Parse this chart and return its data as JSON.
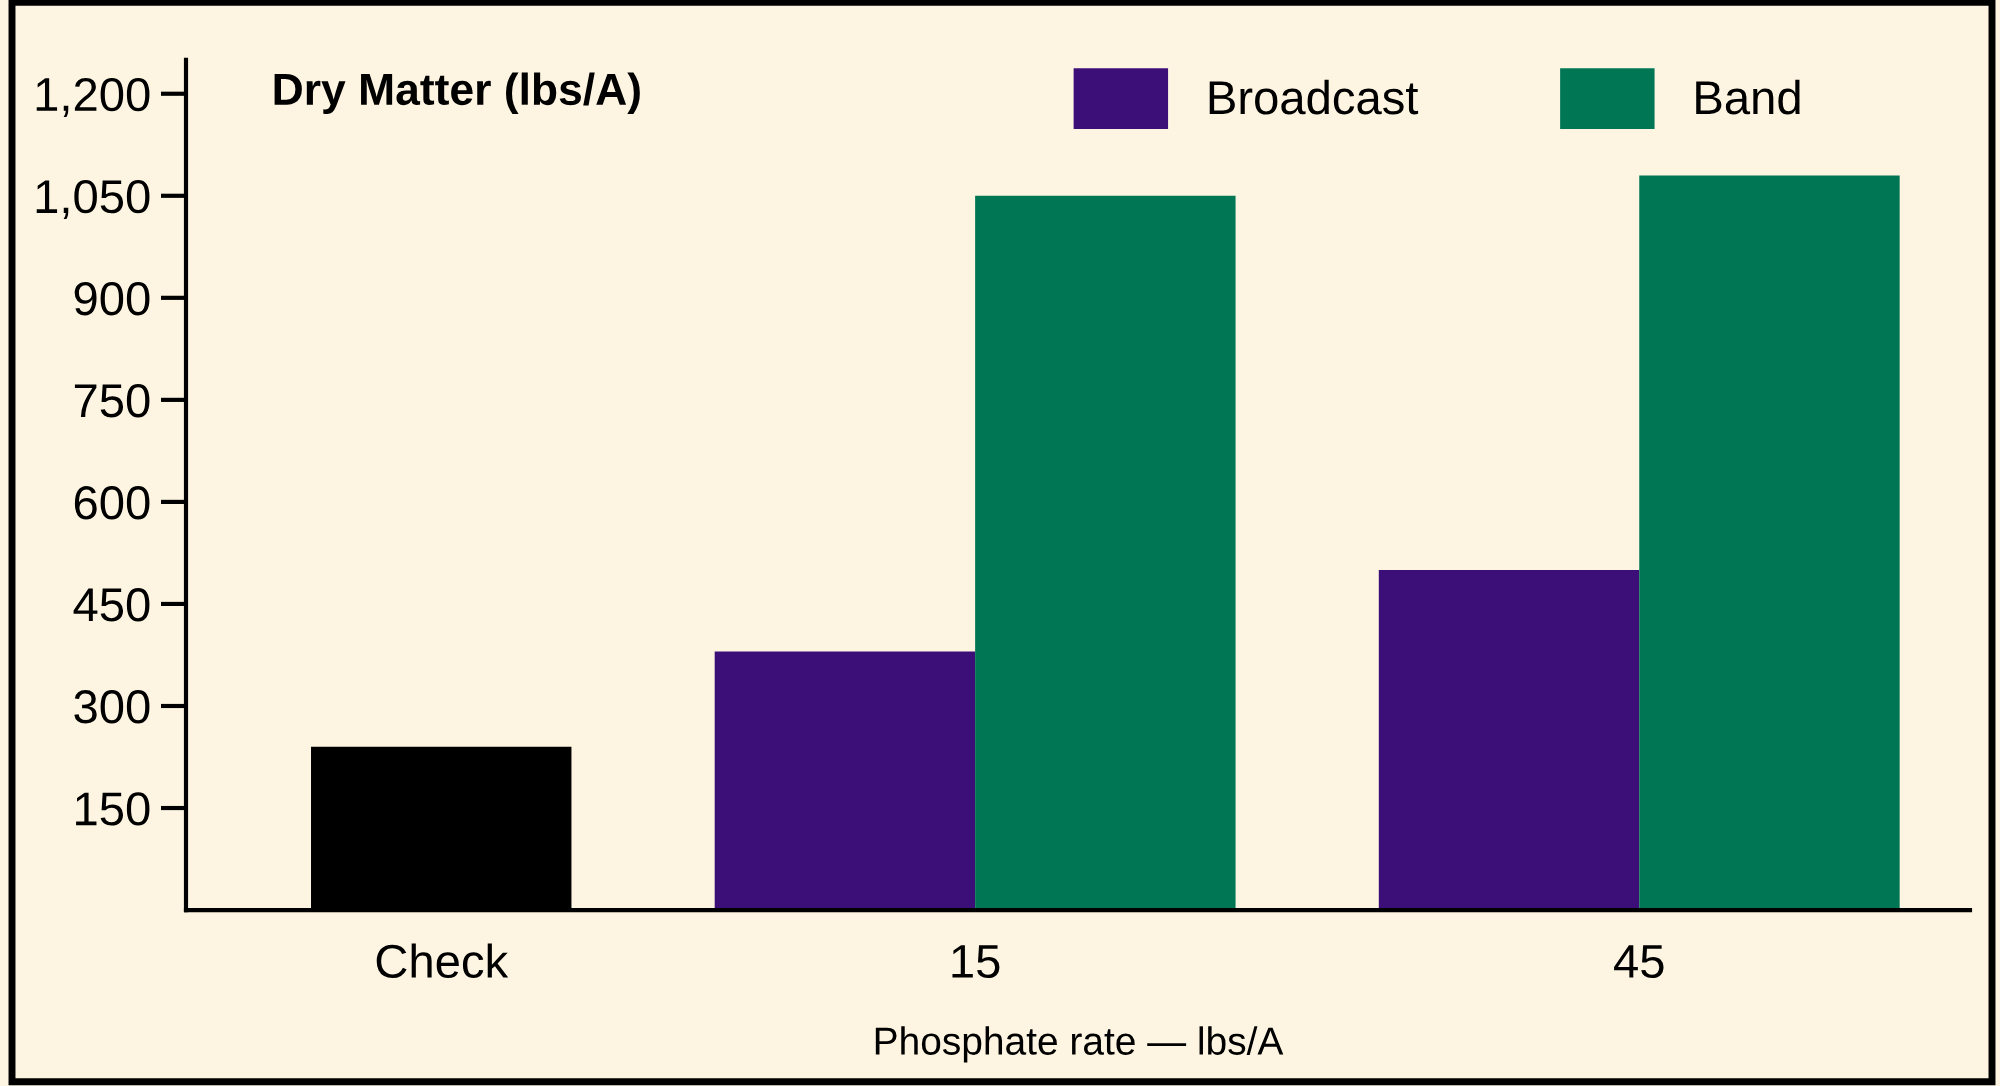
{
  "chart_data": {
    "type": "bar",
    "title": "Dry Matter (lbs/A)",
    "xlabel": "Phosphate rate — lbs/A",
    "categories": [
      "Check",
      "15",
      "45"
    ],
    "series": [
      {
        "color": "#000000",
        "values": [
          240,
          null,
          null
        ]
      },
      {
        "name": "Broadcast",
        "color": "#3c0f78",
        "values": [
          null,
          380,
          500
        ]
      },
      {
        "name": "Band",
        "color": "#007655",
        "values": [
          null,
          1050,
          1080
        ]
      }
    ],
    "ylim": [
      0,
      1250
    ],
    "yticks": [
      {
        "value": 150,
        "label": "150"
      },
      {
        "value": 300,
        "label": "300"
      },
      {
        "value": 450,
        "label": "450"
      },
      {
        "value": 600,
        "label": "600"
      },
      {
        "value": 750,
        "label": "750"
      },
      {
        "value": 900,
        "label": "900"
      },
      {
        "value": 1050,
        "label": "1,050"
      },
      {
        "value": 1200,
        "label": "1,200"
      }
    ],
    "legend": "top right",
    "grid": false
  }
}
